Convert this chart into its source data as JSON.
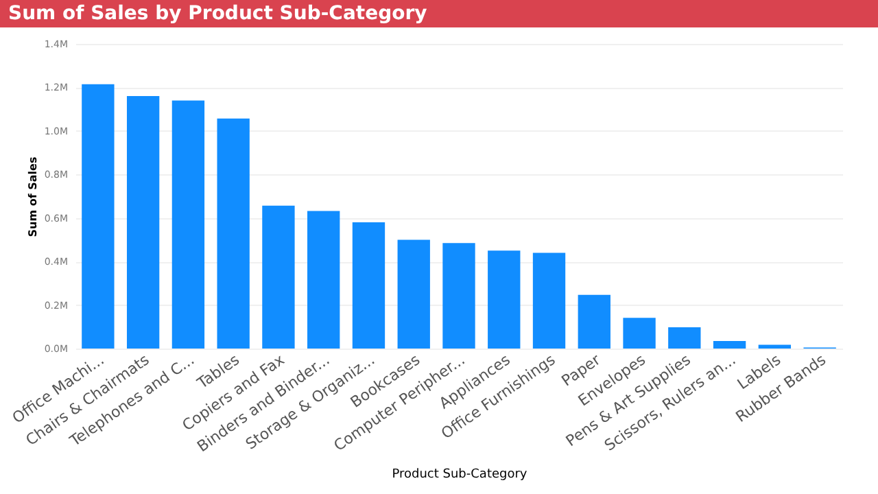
{
  "chart_data": {
    "type": "bar",
    "title": "Sum of Sales by Product Sub-Category",
    "xlabel": "Product Sub-Category",
    "ylabel": "Sum of Sales",
    "categories": [
      "Office Machi...",
      "Chairs & Chairmats",
      "Telephones and C...",
      "Tables",
      "Copiers and Fax",
      "Binders and Binder...",
      "Storage & Organiz...",
      "Bookcases",
      "Computer Peripher...",
      "Appliances",
      "Office Furnishings",
      "Paper",
      "Envelopes",
      "Pens & Art Supplies",
      "Scissors, Rulers an...",
      "Labels",
      "Rubber Bands"
    ],
    "values": [
      1215000,
      1160000,
      1140000,
      1057000,
      657000,
      632000,
      580000,
      500000,
      485000,
      450000,
      440000,
      247000,
      141000,
      98000,
      35000,
      17000,
      5000
    ],
    "color": "#118dff",
    "ylim": [
      0,
      1400000
    ],
    "yticks": [
      {
        "value": 0,
        "label": "0.0M"
      },
      {
        "value": 200000,
        "label": "0.2M"
      },
      {
        "value": 400000,
        "label": "0.4M"
      },
      {
        "value": 600000,
        "label": "0.6M"
      },
      {
        "value": 800000,
        "label": "0.8M"
      },
      {
        "value": 1000000,
        "label": "1.0M"
      },
      {
        "value": 1200000,
        "label": "1.2M"
      },
      {
        "value": 1400000,
        "label": "1.4M"
      }
    ],
    "grid": "y"
  }
}
